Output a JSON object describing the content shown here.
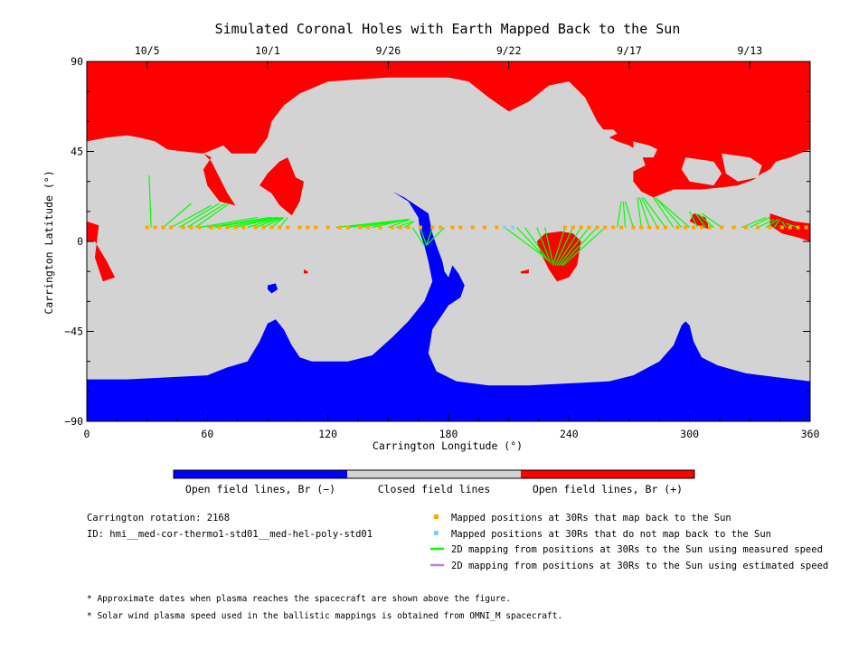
{
  "chart_data": {
    "type": "map",
    "title": "Simulated Coronal Holes with Earth Mapped Back to the Sun",
    "xlabel": "Carrington Longitude (°)",
    "ylabel": "Carrington Latitude (°)",
    "xlim": [
      0,
      360
    ],
    "ylim": [
      -90,
      90
    ],
    "x_ticks": [
      0,
      60,
      120,
      180,
      240,
      300,
      360
    ],
    "y_ticks": [
      90,
      45,
      0,
      -45,
      -90
    ],
    "date_ticks": [
      {
        "label": "10/5",
        "lon": 30
      },
      {
        "label": "10/1",
        "lon": 90
      },
      {
        "label": "9/26",
        "lon": 150
      },
      {
        "label": "9/22",
        "lon": 210
      },
      {
        "label": "9/17",
        "lon": 270
      },
      {
        "label": "9/13",
        "lon": 330
      }
    ],
    "colorbar": [
      {
        "label": "Open field lines, Br (−)",
        "color": "#0000ff"
      },
      {
        "label": "Closed field lines",
        "color": "#d3d3d3"
      },
      {
        "label": "Open field lines, Br (+)",
        "color": "#ff0000"
      }
    ],
    "mapped_latitude": 7,
    "mapped_positions_lon": [
      30,
      34,
      38,
      42,
      48,
      52,
      56,
      62,
      66,
      70,
      74,
      78,
      84,
      88,
      92,
      96,
      100,
      106,
      110,
      114,
      120,
      126,
      130,
      136,
      140,
      146,
      152,
      156,
      160,
      166,
      172,
      176,
      182,
      186,
      192,
      198,
      204,
      238,
      242,
      246,
      250,
      254,
      258,
      262,
      266,
      272,
      276,
      280,
      284,
      288,
      294,
      298,
      302,
      306,
      310,
      316,
      322,
      328,
      334,
      340,
      346,
      350,
      354,
      358
    ],
    "unmapped_positions_lon": [
      208,
      212
    ],
    "mappings_measured": [
      [
        32,
        7,
        31,
        33
      ],
      [
        38,
        7,
        52,
        19
      ],
      [
        42,
        7,
        62,
        18
      ],
      [
        46,
        7,
        66,
        19
      ],
      [
        50,
        7,
        69,
        19
      ],
      [
        54,
        7,
        71,
        19
      ],
      [
        56,
        7,
        85,
        12
      ],
      [
        60,
        7,
        91,
        12
      ],
      [
        64,
        7,
        92,
        12
      ],
      [
        70,
        7,
        94,
        12
      ],
      [
        74,
        7,
        95,
        12
      ],
      [
        80,
        7,
        96,
        12
      ],
      [
        84,
        7,
        97,
        12
      ],
      [
        88,
        7,
        98,
        12
      ],
      [
        92,
        7,
        98,
        12
      ],
      [
        96,
        7,
        100,
        12
      ],
      [
        124,
        7,
        160,
        11
      ],
      [
        130,
        7,
        160,
        11
      ],
      [
        136,
        7,
        160,
        11
      ],
      [
        142,
        7,
        160,
        11
      ],
      [
        150,
        7,
        161,
        11
      ],
      [
        154,
        7,
        162,
        10
      ],
      [
        158,
        7,
        163,
        10
      ],
      [
        162,
        7,
        168,
        -2
      ],
      [
        166,
        7,
        169,
        -2
      ],
      [
        172,
        7,
        169,
        -2
      ],
      [
        178,
        7,
        169,
        -2
      ],
      [
        208,
        7,
        228,
        -8
      ],
      [
        214,
        7,
        229,
        -9
      ],
      [
        218,
        7,
        230,
        -10
      ],
      [
        224,
        7,
        231,
        -11
      ],
      [
        228,
        7,
        232,
        -11
      ],
      [
        238,
        7,
        232,
        -12
      ],
      [
        242,
        7,
        233,
        -12
      ],
      [
        246,
        7,
        234,
        -12
      ],
      [
        250,
        7,
        235,
        -12
      ],
      [
        254,
        7,
        236,
        -12
      ],
      [
        258,
        7,
        237,
        -12
      ],
      [
        264,
        7,
        266,
        20
      ],
      [
        268,
        7,
        267,
        20
      ],
      [
        272,
        7,
        268,
        20
      ],
      [
        276,
        7,
        274,
        22
      ],
      [
        280,
        7,
        275,
        22
      ],
      [
        284,
        7,
        276,
        22
      ],
      [
        288,
        7,
        277,
        22
      ],
      [
        292,
        7,
        282,
        22
      ],
      [
        296,
        7,
        283,
        22
      ],
      [
        300,
        7,
        284,
        21
      ],
      [
        304,
        7,
        300,
        15
      ],
      [
        308,
        7,
        303,
        14
      ],
      [
        312,
        7,
        304,
        14
      ],
      [
        316,
        7,
        306,
        14
      ],
      [
        326,
        7,
        338,
        12
      ],
      [
        330,
        7,
        340,
        12
      ],
      [
        334,
        7,
        342,
        11
      ],
      [
        338,
        7,
        344,
        11
      ],
      [
        342,
        7,
        345,
        11
      ],
      [
        348,
        7,
        346,
        10
      ],
      [
        354,
        7,
        348,
        9
      ]
    ],
    "legend": {
      "mapped": {
        "label": "Mapped positions at 30Rs that map back to the Sun",
        "color": "#ffa500"
      },
      "unmapped": {
        "label": "Mapped positions at 30Rs that do not map back to the Sun",
        "color": "#87cefa"
      },
      "measured": {
        "label": "2D mapping from positions at 30Rs to the Sun using measured speed",
        "color": "#00ff00"
      },
      "estimated": {
        "label": "2D mapping from positions at 30Rs to the Sun using estimated speed",
        "color": "#b47ee8"
      }
    },
    "open_neg_regions": [
      [
        [
          0,
          -69
        ],
        [
          20,
          -69
        ],
        [
          40,
          -68
        ],
        [
          60,
          -67
        ],
        [
          70,
          -63
        ],
        [
          80,
          -60
        ],
        [
          86,
          -50
        ],
        [
          90,
          -41
        ],
        [
          94,
          -39
        ],
        [
          98,
          -44
        ],
        [
          102,
          -52
        ],
        [
          106,
          -58
        ],
        [
          112,
          -60
        ],
        [
          130,
          -60
        ],
        [
          142,
          -57
        ],
        [
          152,
          -48
        ],
        [
          160,
          -40
        ],
        [
          168,
          -30
        ],
        [
          172,
          -20
        ],
        [
          170,
          -10
        ],
        [
          168,
          -2
        ],
        [
          166,
          4
        ],
        [
          165,
          12
        ],
        [
          160,
          20
        ],
        [
          152,
          25
        ],
        [
          158,
          22
        ],
        [
          164,
          18
        ],
        [
          170,
          14
        ],
        [
          172,
          4
        ],
        [
          174,
          -2
        ],
        [
          177,
          -10
        ],
        [
          178,
          -15
        ],
        [
          180,
          -18
        ],
        [
          182,
          -12
        ],
        [
          185,
          -16
        ],
        [
          188,
          -22
        ],
        [
          186,
          -28
        ],
        [
          180,
          -32
        ],
        [
          172,
          -44
        ],
        [
          170,
          -56
        ],
        [
          174,
          -65
        ],
        [
          184,
          -70
        ],
        [
          200,
          -72
        ],
        [
          220,
          -72
        ],
        [
          240,
          -71
        ],
        [
          260,
          -70
        ],
        [
          272,
          -67
        ],
        [
          285,
          -60
        ],
        [
          292,
          -52
        ],
        [
          296,
          -42
        ],
        [
          298,
          -40
        ],
        [
          300,
          -42
        ],
        [
          302,
          -50
        ],
        [
          306,
          -58
        ],
        [
          314,
          -62
        ],
        [
          328,
          -66
        ],
        [
          344,
          -68
        ],
        [
          360,
          -70
        ],
        [
          360,
          -90
        ],
        [
          0,
          -90
        ]
      ],
      [
        [
          90,
          -22
        ],
        [
          94,
          -21
        ],
        [
          95,
          -24
        ],
        [
          92,
          -26
        ],
        [
          90,
          -24
        ]
      ]
    ],
    "open_pos_regions": [
      [
        [
          0,
          90
        ],
        [
          360,
          90
        ],
        [
          360,
          46
        ],
        [
          350,
          42
        ],
        [
          343,
          40
        ],
        [
          340,
          36
        ],
        [
          336,
          34
        ],
        [
          332,
          31
        ],
        [
          324,
          28
        ],
        [
          316,
          27
        ],
        [
          306,
          26
        ],
        [
          292,
          26
        ],
        [
          282,
          22
        ],
        [
          276,
          25
        ],
        [
          272,
          30
        ],
        [
          272,
          35
        ],
        [
          278,
          38
        ],
        [
          276,
          44
        ],
        [
          270,
          48
        ],
        [
          264,
          50
        ],
        [
          260,
          52
        ],
        [
          254,
          60
        ],
        [
          248,
          72
        ],
        [
          240,
          80
        ],
        [
          230,
          78
        ],
        [
          220,
          70
        ],
        [
          210,
          65
        ],
        [
          200,
          72
        ],
        [
          190,
          80
        ],
        [
          180,
          82
        ],
        [
          150,
          82
        ],
        [
          120,
          80
        ],
        [
          106,
          74
        ],
        [
          98,
          68
        ],
        [
          92,
          60
        ],
        [
          90,
          52
        ],
        [
          84,
          44
        ],
        [
          72,
          44
        ],
        [
          68,
          48
        ],
        [
          58,
          44
        ],
        [
          48,
          45
        ],
        [
          40,
          46
        ],
        [
          34,
          50
        ],
        [
          26,
          52
        ],
        [
          20,
          53
        ],
        [
          10,
          52
        ],
        [
          0,
          50
        ]
      ],
      [
        [
          100,
          42
        ],
        [
          104,
          32
        ],
        [
          108,
          30
        ],
        [
          106,
          20
        ],
        [
          102,
          13
        ],
        [
          96,
          18
        ],
        [
          92,
          24
        ],
        [
          86,
          28
        ],
        [
          90,
          34
        ],
        [
          96,
          40
        ]
      ],
      [
        [
          58,
          44
        ],
        [
          62,
          40
        ],
        [
          66,
          32
        ],
        [
          70,
          24
        ],
        [
          74,
          18
        ],
        [
          66,
          20
        ],
        [
          60,
          28
        ],
        [
          58,
          36
        ],
        [
          62,
          42
        ]
      ],
      [
        [
          0,
          10
        ],
        [
          6,
          8
        ],
        [
          4,
          -8
        ],
        [
          8,
          -20
        ],
        [
          14,
          -18
        ],
        [
          10,
          -10
        ],
        [
          4,
          0
        ],
        [
          0,
          0
        ]
      ],
      [
        [
          228,
          4
        ],
        [
          236,
          5
        ],
        [
          242,
          4
        ],
        [
          246,
          0
        ],
        [
          244,
          -12
        ],
        [
          240,
          -18
        ],
        [
          234,
          -20
        ],
        [
          230,
          -14
        ],
        [
          226,
          -6
        ],
        [
          224,
          0
        ]
      ],
      [
        [
          300,
          10
        ],
        [
          304,
          8
        ],
        [
          310,
          6
        ],
        [
          308,
          12
        ],
        [
          302,
          14
        ]
      ],
      [
        [
          340,
          14
        ],
        [
          352,
          10
        ],
        [
          360,
          9
        ],
        [
          360,
          0
        ],
        [
          354,
          2
        ],
        [
          346,
          4
        ],
        [
          340,
          8
        ]
      ],
      [
        [
          108,
          -14
        ],
        [
          110,
          -15
        ],
        [
          110,
          -16
        ],
        [
          108,
          -16
        ]
      ],
      [
        [
          216,
          -15
        ],
        [
          220,
          -14
        ],
        [
          220,
          -16
        ],
        [
          216,
          -16
        ]
      ]
    ],
    "closed_islands": [
      [
        [
          40,
          45
        ],
        [
          46,
          44
        ],
        [
          50,
          40
        ],
        [
          48,
          36
        ],
        [
          44,
          34
        ],
        [
          40,
          38
        ]
      ],
      [
        [
          64,
          45
        ],
        [
          70,
          42
        ],
        [
          74,
          38
        ],
        [
          70,
          34
        ],
        [
          66,
          36
        ],
        [
          62,
          40
        ]
      ],
      [
        [
          48,
          45
        ],
        [
          54,
          44
        ],
        [
          58,
          40
        ],
        [
          56,
          36
        ],
        [
          52,
          36
        ],
        [
          48,
          40
        ]
      ],
      [
        [
          256,
          56
        ],
        [
          262,
          56
        ],
        [
          264,
          54
        ],
        [
          260,
          52
        ],
        [
          256,
          54
        ]
      ],
      [
        [
          272,
          50
        ],
        [
          280,
          48
        ],
        [
          284,
          46
        ],
        [
          282,
          42
        ],
        [
          276,
          42
        ],
        [
          272,
          46
        ]
      ],
      [
        [
          298,
          42
        ],
        [
          312,
          40
        ],
        [
          316,
          34
        ],
        [
          312,
          28
        ],
        [
          300,
          30
        ],
        [
          296,
          36
        ]
      ],
      [
        [
          316,
          44
        ],
        [
          330,
          42
        ],
        [
          336,
          38
        ],
        [
          334,
          32
        ],
        [
          324,
          30
        ],
        [
          318,
          34
        ]
      ],
      [
        [
          344,
          40
        ],
        [
          352,
          40
        ],
        [
          356,
          36
        ],
        [
          354,
          30
        ],
        [
          346,
          30
        ],
        [
          342,
          34
        ]
      ]
    ],
    "notes": [
      "Carrington rotation: 2168",
      "ID: hmi__med-cor-thermo1-std01__med-hel-poly-std01"
    ],
    "footnotes": [
      "* Approximate dates when plasma reaches the spacecraft are shown above the figure.",
      "* Solar wind plasma speed used in the ballistic mappings is obtained from OMNI_M spacecraft."
    ]
  }
}
